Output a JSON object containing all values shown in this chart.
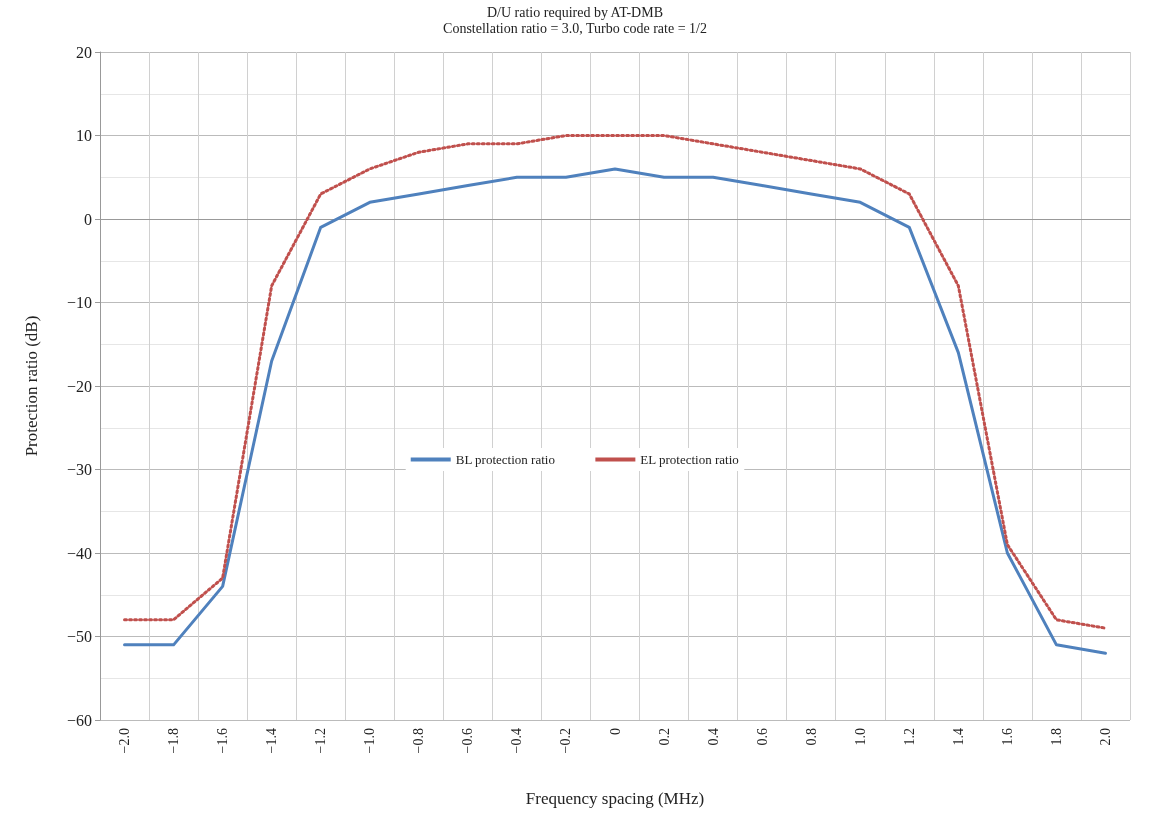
{
  "chart_data": {
    "type": "line",
    "title": "D/U ratio required by AT-DMB",
    "subtitle": "Constellation ratio = 3.0, Turbo code rate = 1/2",
    "xlabel": "Frequency spacing (MHz)",
    "ylabel": "Protection ratio (dB)",
    "categories": [
      "−2.0",
      "−1.8",
      "−1.6",
      "−1.4",
      "−1.2",
      "−1.0",
      "−0.8",
      "−0.6",
      "−0.4",
      "−0.2",
      "0",
      "0.2",
      "0.4",
      "0.6",
      "0.8",
      "1.0",
      "1.2",
      "1.4",
      "1.6",
      "1.8",
      "2.0"
    ],
    "series": [
      {
        "name": "BL protection ratio",
        "color": "#4f81bd",
        "line_style": "solid",
        "values": [
          -51,
          -51,
          -44,
          -17,
          -1,
          2,
          3,
          4,
          5,
          5,
          6,
          5,
          5,
          4,
          3,
          2,
          -1,
          -16,
          -40,
          -51,
          -52
        ]
      },
      {
        "name": "EL protection ratio",
        "color": "#c0504d",
        "line_style": "dotted",
        "values": [
          -48,
          -48,
          -43,
          -8,
          3,
          6,
          8,
          9,
          9,
          10,
          10,
          10,
          9,
          8,
          7,
          6,
          3,
          -8,
          -39,
          -48,
          -49
        ]
      }
    ],
    "ylim": [
      -60,
      20
    ],
    "yticks": [
      {
        "value": -60,
        "label": "−60"
      },
      {
        "value": -50,
        "label": "−50"
      },
      {
        "value": -40,
        "label": "−40"
      },
      {
        "value": -30,
        "label": "−30"
      },
      {
        "value": -20,
        "label": "−20"
      },
      {
        "value": -10,
        "label": "−10"
      },
      0,
      10,
      20
    ],
    "grid": true,
    "legend": "center",
    "marker": "none"
  }
}
